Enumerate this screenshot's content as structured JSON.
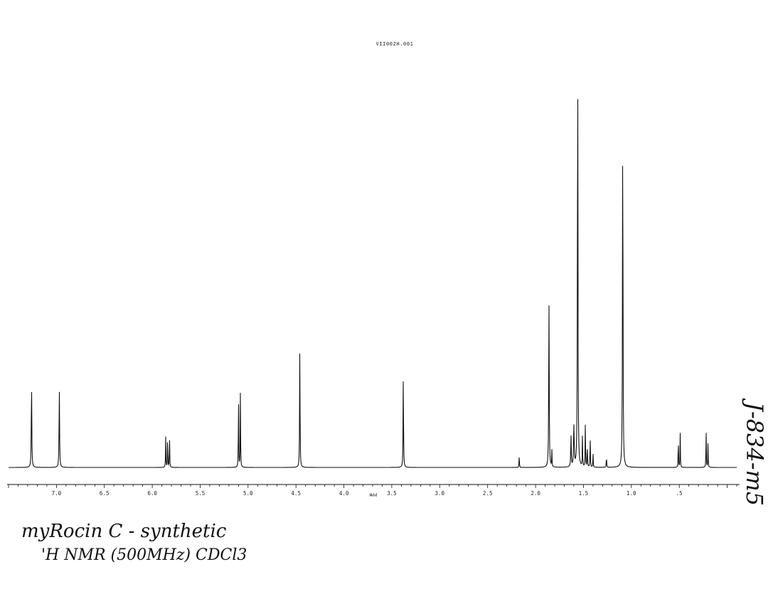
{
  "filename": "VII002H.001",
  "notes": {
    "line1": "myRocin C - synthetic",
    "line2": "'H NMR (500MHz) CDCl3",
    "side": "J-834-m5"
  },
  "chart_data": {
    "type": "line",
    "title": "VII002H.001",
    "xlabel": "PPM",
    "ylabel": "",
    "xlim": [
      7.5,
      -0.1
    ],
    "x_reversed": true,
    "ticks": [
      7.0,
      6.5,
      6.0,
      5.5,
      5.0,
      4.5,
      4.0,
      3.5,
      3.0,
      2.5,
      2.0,
      1.5,
      1.0,
      0.5
    ],
    "tick_labels": [
      "7.0",
      "6.5",
      "6.0",
      "5.5",
      "5.0",
      "4.5",
      "4.0",
      "3.5",
      "3.0",
      "2.5",
      "2.0",
      "1.5",
      "1.0",
      ".5"
    ],
    "grid": false,
    "peaks": [
      {
        "ppm": 7.26,
        "intensity": 0.205,
        "width": 0.006
      },
      {
        "ppm": 6.97,
        "intensity": 0.185,
        "width": 0.006
      },
      {
        "ppm": 5.86,
        "intensity": 0.072,
        "width": 0.004
      },
      {
        "ppm": 5.84,
        "intensity": 0.078,
        "width": 0.004
      },
      {
        "ppm": 5.82,
        "intensity": 0.08,
        "width": 0.004
      },
      {
        "ppm": 5.1,
        "intensity": 0.18,
        "width": 0.004
      },
      {
        "ppm": 5.08,
        "intensity": 0.182,
        "width": 0.004
      },
      {
        "ppm": 4.46,
        "intensity": 0.29,
        "width": 0.005
      },
      {
        "ppm": 3.38,
        "intensity": 0.225,
        "width": 0.005
      },
      {
        "ppm": 2.17,
        "intensity": 0.03,
        "width": 0.004
      },
      {
        "ppm": 1.86,
        "intensity": 0.395,
        "width": 0.006
      },
      {
        "ppm": 1.83,
        "intensity": 0.04,
        "width": 0.004
      },
      {
        "ppm": 1.63,
        "intensity": 0.075,
        "width": 0.006
      },
      {
        "ppm": 1.6,
        "intensity": 0.095,
        "width": 0.008
      },
      {
        "ppm": 1.56,
        "intensity": 1.0,
        "width": 0.006
      },
      {
        "ppm": 1.51,
        "intensity": 0.075,
        "width": 0.004
      },
      {
        "ppm": 1.48,
        "intensity": 0.115,
        "width": 0.004
      },
      {
        "ppm": 1.46,
        "intensity": 0.06,
        "width": 0.004
      },
      {
        "ppm": 1.43,
        "intensity": 0.08,
        "width": 0.004
      },
      {
        "ppm": 1.4,
        "intensity": 0.035,
        "width": 0.004
      },
      {
        "ppm": 1.26,
        "intensity": 0.03,
        "width": 0.004
      },
      {
        "ppm": 1.09,
        "intensity": 0.82,
        "width": 0.006
      },
      {
        "ppm": 0.51,
        "intensity": 0.075,
        "width": 0.004
      },
      {
        "ppm": 0.49,
        "intensity": 0.08,
        "width": 0.004
      },
      {
        "ppm": 0.22,
        "intensity": 0.095,
        "width": 0.004
      },
      {
        "ppm": 0.2,
        "intensity": 0.06,
        "width": 0.004
      }
    ]
  }
}
